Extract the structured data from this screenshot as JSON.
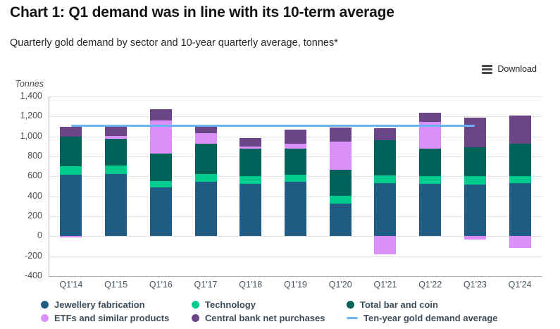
{
  "header": {
    "title": "Chart 1: Q1 demand was in line with its 10-term average",
    "subtitle": "Quarterly gold demand by sector and 10-year quarterly average, tonnes*"
  },
  "toolbar": {
    "download_label": "Download",
    "download_icon": "hamburger-menu-icon"
  },
  "colors": {
    "jewellery": "#215c85",
    "technology": "#00cc8e",
    "bar_and_coin": "#00635a",
    "etfs": "#db8ff8",
    "central_banks": "#6c4589",
    "average_line": "#6ab3f0",
    "gridline": "#c9c9c9",
    "axis": "#b0b0b0"
  },
  "chart_data": {
    "type": "bar",
    "stacked": true,
    "title": "Chart 1: Q1 demand was in line with its 10-term average",
    "subtitle": "Quarterly gold demand by sector and 10-year quarterly average, tonnes*",
    "y_axis_label": "Tonnes",
    "xlabel": "",
    "ylabel": "Tonnes",
    "ylim": [
      -400,
      1400
    ],
    "ytick_step": 200,
    "grid": "dotted-horizontal",
    "legend_position": "bottom",
    "categories": [
      "Q1'14",
      "Q1'15",
      "Q1'16",
      "Q1'17",
      "Q1'18",
      "Q1'19",
      "Q1'20",
      "Q1'21",
      "Q1'22",
      "Q1'23",
      "Q1'24"
    ],
    "series": [
      {
        "name": "Jewellery fabrication",
        "color": "#215c85",
        "values": [
          615,
          625,
          490,
          545,
          525,
          545,
          330,
          535,
          525,
          520,
          530
        ]
      },
      {
        "name": "Technology",
        "color": "#00cc8e",
        "values": [
          85,
          80,
          65,
          80,
          80,
          75,
          75,
          75,
          75,
          80,
          75
        ]
      },
      {
        "name": "Total bar and coin",
        "color": "#00635a",
        "values": [
          295,
          270,
          270,
          300,
          270,
          255,
          260,
          355,
          275,
          295,
          320
        ]
      },
      {
        "name": "ETFs and similar products",
        "color": "#db8ff8",
        "values": [
          -10,
          30,
          335,
          105,
          25,
          50,
          285,
          -180,
          270,
          -35,
          -115
        ]
      },
      {
        "name": "Central bank net purchases",
        "color": "#6c4589",
        "values": [
          105,
          90,
          115,
          90,
          85,
          145,
          140,
          120,
          90,
          290,
          285
        ]
      }
    ],
    "average_line": {
      "name": "Ten-year gold demand average",
      "color": "#6ab3f0",
      "value": 1110,
      "from_category": "Q1'14",
      "to_category": "Q1'23"
    },
    "legend": [
      {
        "label": "Jewellery fabrication",
        "color": "#215c85",
        "marker": "circle"
      },
      {
        "label": "ETFs and similar products",
        "color": "#db8ff8",
        "marker": "circle"
      },
      {
        "label": "Technology",
        "color": "#00cc8e",
        "marker": "circle"
      },
      {
        "label": "Central bank net purchases",
        "color": "#6c4589",
        "marker": "circle"
      },
      {
        "label": "Total bar and coin",
        "color": "#00635a",
        "marker": "circle"
      },
      {
        "label": "Ten-year gold demand average",
        "color": "#6ab3f0",
        "marker": "line"
      }
    ],
    "legend_columns": 3
  }
}
